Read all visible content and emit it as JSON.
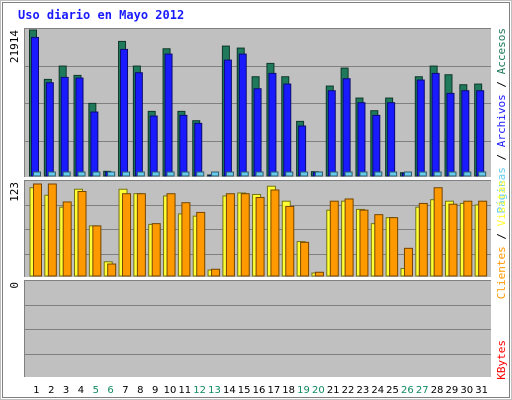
{
  "chart_data": {
    "type": "bar",
    "title": "Uso diario en Mayo 2012",
    "categories": [
      "1",
      "2",
      "3",
      "4",
      "5",
      "6",
      "7",
      "8",
      "9",
      "10",
      "11",
      "12",
      "13",
      "14",
      "15",
      "16",
      "17",
      "18",
      "19",
      "20",
      "21",
      "22",
      "23",
      "24",
      "25",
      "26",
      "27",
      "28",
      "29",
      "30",
      "31"
    ],
    "weekend_days": [
      "5",
      "6",
      "12",
      "13",
      "19",
      "20",
      "26",
      "27"
    ],
    "panels": [
      {
        "name": "top",
        "max_label": "21914",
        "ylim": [
          0,
          21914
        ],
        "series": [
          {
            "name": "Páginas",
            "color": "#66ccee",
            "values": [
              500,
              400,
              450,
              450,
              350,
              200,
              500,
              450,
              400,
              450,
              350,
              300,
              100,
              450,
              450,
              400,
              450,
              400,
              300,
              200,
              400,
              450,
              400,
              350,
              400,
              200,
              350,
              400,
              450,
              400,
              400
            ]
          },
          {
            "name": "Archivos",
            "color": "#1a1aff",
            "values": [
              20800,
              14000,
              14800,
              14700,
              9600,
              600,
              19000,
              15500,
              9000,
              18300,
              9100,
              7900,
              100,
              17400,
              18300,
              13100,
              15400,
              13800,
              7500,
              500,
              12800,
              14600,
              11000,
              9100,
              11000,
              400,
              14400,
              15400,
              12400,
              12800,
              12800
            ]
          },
          {
            "name": "Accesos",
            "color": "#1f7a5c",
            "values": [
              21914,
              14500,
              16500,
              15100,
              10900,
              700,
              20200,
              16500,
              9700,
              19100,
              9700,
              8300,
              150,
              19500,
              19200,
              14900,
              16900,
              14900,
              8200,
              650,
              13500,
              16200,
              11700,
              9800,
              11700,
              500,
              14900,
              16500,
              15200,
              13700,
              13800
            ]
          }
        ]
      },
      {
        "name": "middle",
        "max_label": "123",
        "ylim": [
          0,
          123
        ],
        "series": [
          {
            "name": "Visitas",
            "color": "#ffff33",
            "values": [
              118,
              108,
              92,
              116,
              67,
              19,
              116,
              110,
              69,
              107,
              83,
              80,
              8,
              107,
              111,
              109,
              120,
              100,
              46,
              4,
              88,
              100,
              89,
              70,
              78,
              10,
              92,
              102,
              100,
              97,
              95
            ]
          },
          {
            "name": "Clientes",
            "color": "#ff9900",
            "values": [
              123,
              123,
              99,
              113,
              67,
              16,
              110,
              110,
              70,
              110,
              98,
              85,
              9,
              110,
              110,
              105,
              115,
              93,
              45,
              5,
              100,
              103,
              88,
              82,
              78,
              37,
              97,
              118,
              96,
              100,
              100
            ]
          }
        ]
      },
      {
        "name": "bottom",
        "max_label": "0",
        "ylim": [
          0,
          1
        ],
        "series": [
          {
            "name": "KBytes",
            "color": "#ff0000",
            "values": [
              0,
              0,
              0,
              0,
              0,
              0,
              0,
              0,
              0,
              0,
              0,
              0,
              0,
              0,
              0,
              0,
              0,
              0,
              0,
              0,
              0,
              0,
              0,
              0,
              0,
              0,
              0,
              0,
              0,
              0,
              0
            ]
          }
        ]
      }
    ],
    "right_labels": {
      "top": [
        {
          "text": "Páginas",
          "color": "#66ccee"
        },
        {
          "text": " / ",
          "color": "#000000"
        },
        {
          "text": "Archivos",
          "color": "#1a1aff"
        },
        {
          "text": " / ",
          "color": "#000000"
        },
        {
          "text": "Accesos",
          "color": "#1f7a5c"
        }
      ],
      "middle": [
        {
          "text": "Clientes",
          "color": "#ff9900"
        },
        {
          "text": " / ",
          "color": "#000000"
        },
        {
          "text": "Visitas",
          "color": "#ffff33"
        }
      ],
      "bottom": [
        {
          "text": "KBytes",
          "color": "#ff0000"
        }
      ]
    },
    "colors": {
      "plot_bg": "#c0c0c0",
      "grid": "#808080",
      "weekday_label": "#000000",
      "weekend_label": "#0f8a5f",
      "title": "#1a1aff"
    }
  }
}
